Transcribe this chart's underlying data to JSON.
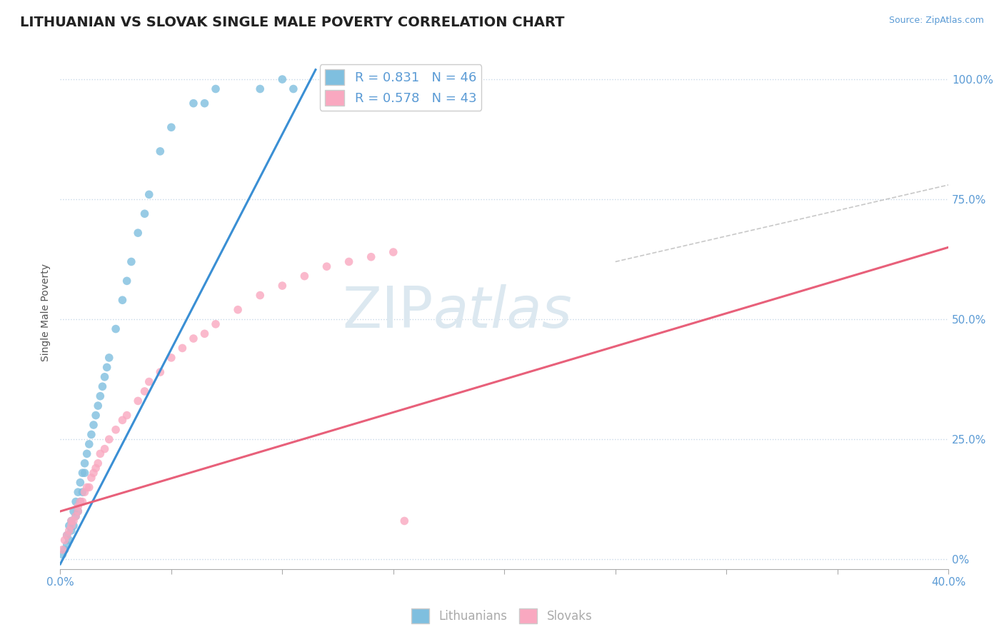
{
  "title": "LITHUANIAN VS SLOVAK SINGLE MALE POVERTY CORRELATION CHART",
  "source": "Source: ZipAtlas.com",
  "ylabel": "Single Male Poverty",
  "xlim": [
    0.0,
    0.4
  ],
  "ylim": [
    -0.02,
    1.05
  ],
  "legend_blue_R": "0.831",
  "legend_blue_N": "46",
  "legend_pink_R": "0.578",
  "legend_pink_N": "43",
  "blue_color": "#7fbfdf",
  "pink_color": "#f9a8c0",
  "blue_line_color": "#3a8fd4",
  "pink_line_color": "#e8607a",
  "watermark_color": "#dce8f0",
  "background_color": "#ffffff",
  "grid_color": "#c8d8e8",
  "title_fontsize": 14,
  "label_fontsize": 10,
  "tick_fontsize": 11,
  "blue_scatter_x": [
    0.001,
    0.002,
    0.003,
    0.003,
    0.004,
    0.004,
    0.005,
    0.005,
    0.006,
    0.006,
    0.007,
    0.007,
    0.008,
    0.008,
    0.009,
    0.009,
    0.01,
    0.01,
    0.011,
    0.011,
    0.012,
    0.013,
    0.014,
    0.015,
    0.016,
    0.017,
    0.018,
    0.019,
    0.02,
    0.021,
    0.022,
    0.025,
    0.028,
    0.03,
    0.032,
    0.035,
    0.038,
    0.04,
    0.045,
    0.05,
    0.06,
    0.065,
    0.07,
    0.09,
    0.1,
    0.105
  ],
  "blue_scatter_y": [
    0.01,
    0.02,
    0.03,
    0.05,
    0.04,
    0.07,
    0.06,
    0.08,
    0.07,
    0.1,
    0.09,
    0.12,
    0.1,
    0.14,
    0.12,
    0.16,
    0.14,
    0.18,
    0.18,
    0.2,
    0.22,
    0.24,
    0.26,
    0.28,
    0.3,
    0.32,
    0.34,
    0.36,
    0.38,
    0.4,
    0.42,
    0.48,
    0.54,
    0.58,
    0.62,
    0.68,
    0.72,
    0.76,
    0.85,
    0.9,
    0.95,
    0.95,
    0.98,
    0.98,
    1.0,
    0.98
  ],
  "pink_scatter_x": [
    0.001,
    0.002,
    0.003,
    0.004,
    0.005,
    0.005,
    0.006,
    0.007,
    0.008,
    0.008,
    0.009,
    0.01,
    0.011,
    0.012,
    0.013,
    0.014,
    0.015,
    0.016,
    0.017,
    0.018,
    0.02,
    0.022,
    0.025,
    0.028,
    0.03,
    0.035,
    0.038,
    0.04,
    0.045,
    0.05,
    0.055,
    0.06,
    0.065,
    0.07,
    0.08,
    0.09,
    0.1,
    0.11,
    0.12,
    0.13,
    0.14,
    0.15,
    0.155
  ],
  "pink_scatter_y": [
    0.02,
    0.04,
    0.05,
    0.06,
    0.07,
    0.08,
    0.08,
    0.09,
    0.1,
    0.11,
    0.12,
    0.12,
    0.14,
    0.15,
    0.15,
    0.17,
    0.18,
    0.19,
    0.2,
    0.22,
    0.23,
    0.25,
    0.27,
    0.29,
    0.3,
    0.33,
    0.35,
    0.37,
    0.39,
    0.42,
    0.44,
    0.46,
    0.47,
    0.49,
    0.52,
    0.55,
    0.57,
    0.59,
    0.61,
    0.62,
    0.63,
    0.64,
    0.08
  ],
  "blue_line_x0": 0.0,
  "blue_line_y0": -0.01,
  "blue_line_x1": 0.115,
  "blue_line_y1": 1.02,
  "pink_line_x0": 0.0,
  "pink_line_y0": 0.1,
  "pink_line_x1": 0.4,
  "pink_line_y1": 0.65,
  "dash_line_x0": 0.25,
  "dash_line_y0": 0.62,
  "dash_line_x1": 0.4,
  "dash_line_y1": 0.78
}
